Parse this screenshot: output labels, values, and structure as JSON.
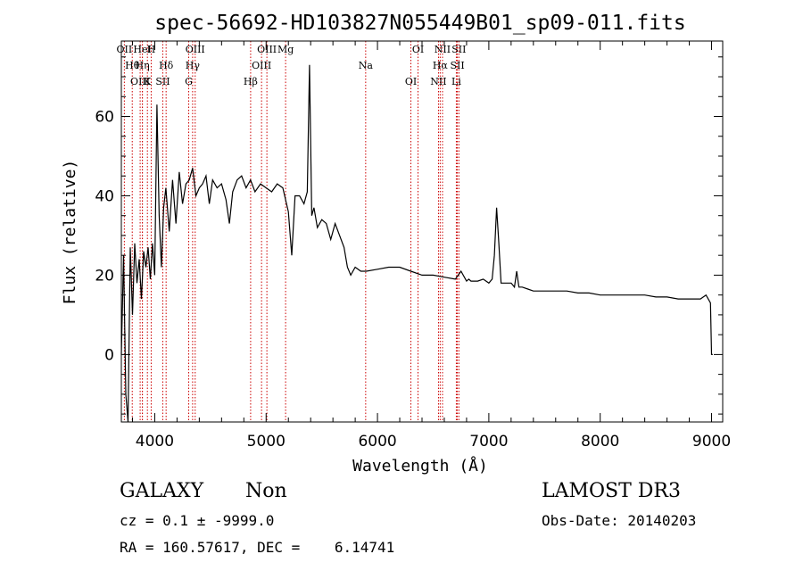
{
  "chart_data": {
    "type": "line",
    "title": "spec-56692-HD103827N055449B01_sp09-011.fits",
    "xlabel": "Wavelength (Å)",
    "ylabel": "Flux (relative)",
    "xlim": [
      3700,
      9100
    ],
    "ylim": [
      -17,
      79
    ],
    "xticks": [
      4000,
      5000,
      6000,
      7000,
      8000,
      9000
    ],
    "yticks": [
      0,
      20,
      40,
      60
    ],
    "grid": false,
    "legend": "none",
    "series": [
      {
        "color": "#000000",
        "x": [
          3700,
          3720,
          3740,
          3760,
          3780,
          3800,
          3820,
          3840,
          3860,
          3880,
          3900,
          3920,
          3940,
          3960,
          3980,
          4000,
          4020,
          4040,
          4060,
          4080,
          4100,
          4130,
          4160,
          4190,
          4220,
          4250,
          4280,
          4310,
          4340,
          4370,
          4400,
          4430,
          4460,
          4490,
          4520,
          4560,
          4600,
          4640,
          4670,
          4700,
          4740,
          4780,
          4820,
          4860,
          4900,
          4950,
          5000,
          5050,
          5100,
          5150,
          5200,
          5230,
          5260,
          5300,
          5340,
          5370,
          5390,
          5410,
          5430,
          5460,
          5500,
          5540,
          5580,
          5620,
          5660,
          5700,
          5730,
          5760,
          5800,
          5850,
          5900,
          6000,
          6100,
          6200,
          6300,
          6400,
          6500,
          6600,
          6700,
          6750,
          6800,
          6820,
          6840,
          6900,
          6950,
          7000,
          7030,
          7050,
          7070,
          7090,
          7110,
          7150,
          7200,
          7230,
          7250,
          7270,
          7300,
          7350,
          7400,
          7500,
          7600,
          7700,
          7800,
          7900,
          8000,
          8100,
          8200,
          8300,
          8400,
          8500,
          8600,
          8700,
          8800,
          8900,
          8950,
          8990,
          9000,
          9010
        ],
        "values": [
          0,
          25,
          -10,
          -17,
          27,
          10,
          28,
          18,
          24,
          14,
          26,
          22,
          27,
          19,
          28,
          20,
          63,
          35,
          22,
          37,
          42,
          31,
          44,
          33,
          46,
          38,
          43,
          44,
          47,
          40,
          42,
          43,
          45,
          38,
          44,
          42,
          43,
          39,
          33,
          41,
          44,
          45,
          42,
          44,
          41,
          43,
          42,
          41,
          43,
          42,
          36,
          25,
          40,
          40,
          38,
          41,
          73,
          35,
          37,
          32,
          34,
          33,
          29,
          33,
          30,
          27,
          22,
          20,
          22,
          21,
          21,
          21.5,
          22,
          22,
          21,
          20,
          20,
          19.5,
          19,
          21,
          18.5,
          19,
          18.5,
          18.5,
          19,
          18,
          19,
          25,
          37,
          28,
          18,
          18,
          18,
          17,
          21,
          17,
          17,
          16.5,
          16,
          16,
          16,
          16,
          15.5,
          15.5,
          15,
          15,
          15,
          15,
          15,
          14.5,
          14.5,
          14,
          14,
          14,
          15,
          13,
          0,
          0
        ]
      }
    ],
    "annotations": [
      {
        "label": "OII",
        "x": 3727
      },
      {
        "label": "Hθ",
        "x": 3798
      },
      {
        "label": "OIII",
        "x": 3869
      },
      {
        "label": "HeI",
        "x": 3889
      },
      {
        "label": "Hη",
        "x": 3889
      },
      {
        "label": "K",
        "x": 3934
      },
      {
        "label": "H",
        "x": 3968
      },
      {
        "label": "Hδ",
        "x": 4102
      },
      {
        "label": "SII",
        "x": 4072
      },
      {
        "label": "OIII",
        "x": 4363
      },
      {
        "label": "Hγ",
        "x": 4340
      },
      {
        "label": "G",
        "x": 4305
      },
      {
        "label": "OIII",
        "x": 5007
      },
      {
        "label": "OIII",
        "x": 4959
      },
      {
        "label": "Hβ",
        "x": 4861
      },
      {
        "label": "Mg",
        "x": 5175
      },
      {
        "label": "Na",
        "x": 5894
      },
      {
        "label": "OI",
        "x": 6300
      },
      {
        "label": "OI",
        "x": 6364
      },
      {
        "label": "Hα",
        "x": 6563
      },
      {
        "label": "NII",
        "x": 6548
      },
      {
        "label": "NII",
        "x": 6584
      },
      {
        "label": "SII",
        "x": 6717
      },
      {
        "label": "Li",
        "x": 6708
      },
      {
        "label": "SII",
        "x": 6731
      }
    ]
  },
  "info": {
    "class_label": "GALAXY",
    "subclass_label": "Non",
    "survey_label": "LAMOST DR3",
    "redshift_text": "cz = 0.1 ± -9999.0",
    "obs_date_text": "Obs-Date: 20140203",
    "coords_text": "RA = 160.57617, DEC =    6.14741"
  }
}
